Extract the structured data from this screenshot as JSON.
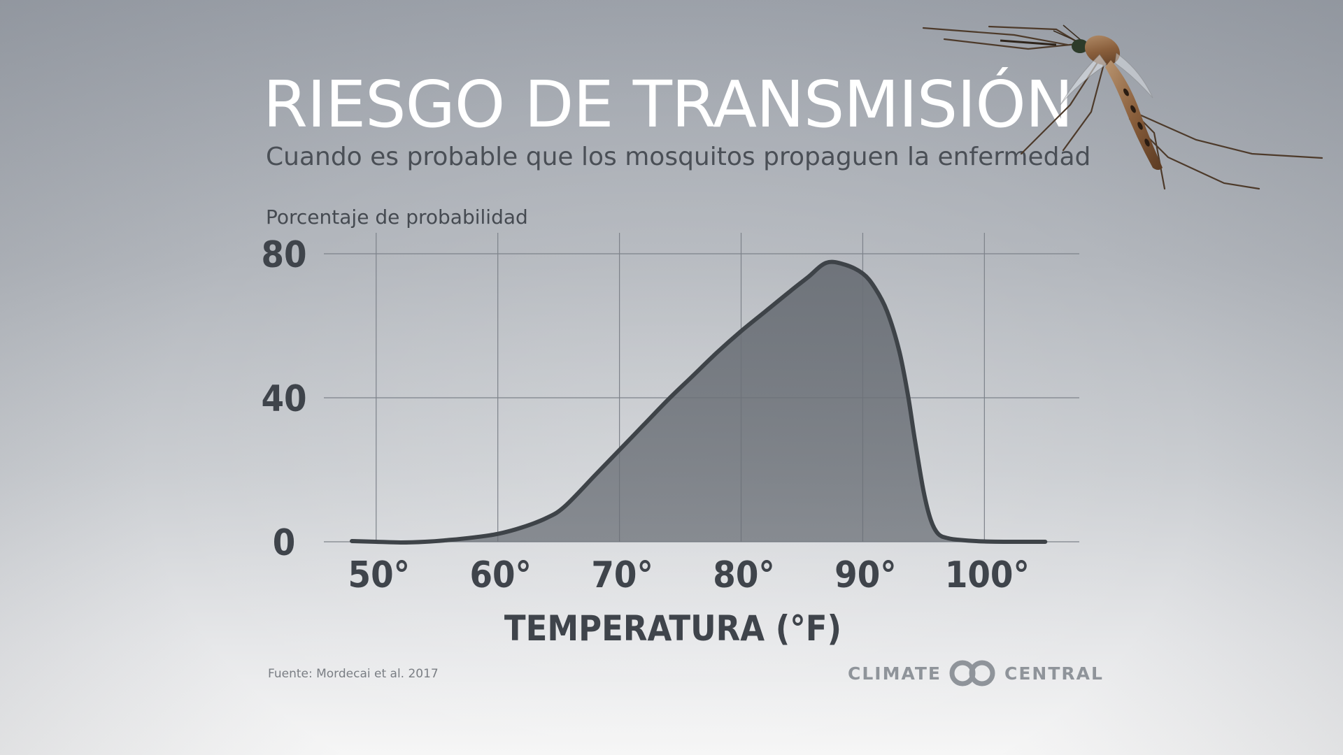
{
  "title": "RIESGO DE TRANSMISIÓN",
  "subtitle": "Cuando es probable que los mosquitos propaguen la enfermedad",
  "source": "Fuente: Mordecai et al. 2017",
  "logo": {
    "left": "CLIMATE",
    "right": "CENTRAL"
  },
  "icons": {
    "mosquito": "mosquito-photo",
    "logo_mark": "climate-central-double-ring-logo"
  },
  "chart_data": {
    "type": "area",
    "ylabel": "Porcentaje de probabilidad",
    "xlabel": "TEMPERATURA (°F)",
    "x_ticks": [
      {
        "value": 50,
        "label": "50°"
      },
      {
        "value": 60,
        "label": "60°"
      },
      {
        "value": 70,
        "label": "70°"
      },
      {
        "value": 80,
        "label": "80°"
      },
      {
        "value": 90,
        "label": "90°"
      },
      {
        "value": 100,
        "label": "100°"
      }
    ],
    "y_ticks": [
      {
        "value": 0,
        "label": "0"
      },
      {
        "value": 40,
        "label": "40"
      },
      {
        "value": 80,
        "label": "80"
      }
    ],
    "xlim": [
      45.7,
      107.8
    ],
    "ylim": [
      0,
      80
    ],
    "grid": true,
    "series": [
      {
        "x": [
          48,
          50,
          52,
          54,
          56,
          58,
          60,
          62,
          64,
          65.5,
          68,
          70,
          72,
          74,
          76,
          78,
          80,
          82,
          84,
          85.5,
          87,
          88.5,
          90,
          91,
          92,
          93,
          93.7,
          94.3,
          95,
          95.6,
          96.2,
          97,
          98,
          100,
          102,
          104,
          105
        ],
        "y": [
          0.2,
          0,
          -0.2,
          0,
          0.5,
          1.2,
          2.2,
          4,
          6.6,
          9.8,
          18.5,
          25.5,
          32.5,
          39.5,
          46,
          52.5,
          58.5,
          64,
          69.5,
          73.5,
          77.5,
          77,
          74.5,
          70.5,
          64,
          53,
          41,
          28,
          14,
          6,
          2.2,
          1,
          0.5,
          0.1,
          0,
          0,
          0
        ]
      }
    ],
    "colors": {
      "area": "#6f757c",
      "line": "#3e4348",
      "grid": "#7d828a",
      "text": "#3f444b"
    }
  }
}
